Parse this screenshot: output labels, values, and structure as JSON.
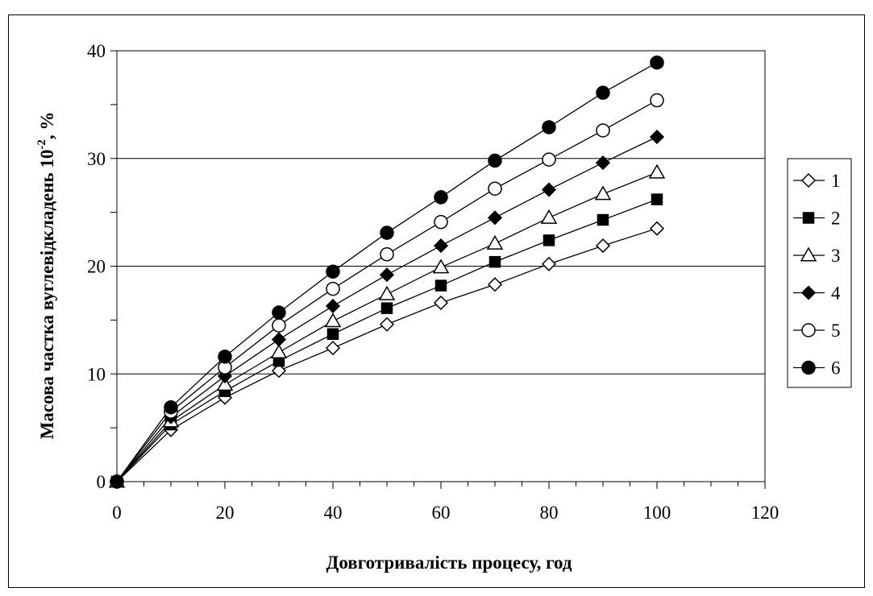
{
  "chart_data": {
    "type": "line",
    "title": "",
    "xlabel": "Довготривалість процесу, год",
    "ylabel_main": "Масова частка вуглевідкладень 10",
    "ylabel_exponent": "-2",
    "ylabel_unit": ", %",
    "xlim": [
      0,
      120
    ],
    "ylim": [
      0,
      40
    ],
    "xticks": [
      0,
      20,
      40,
      60,
      80,
      100,
      120
    ],
    "yticks": [
      0,
      10,
      20,
      30,
      40
    ],
    "grid": "horizontal major lines",
    "legend_position": "right",
    "x": [
      0,
      10,
      20,
      30,
      40,
      50,
      60,
      70,
      80,
      90,
      100
    ],
    "series": [
      {
        "name": "1",
        "marker": "diamond-open",
        "values": [
          0,
          4.8,
          7.8,
          10.3,
          12.4,
          14.6,
          16.6,
          18.3,
          20.2,
          21.9,
          23.5
        ]
      },
      {
        "name": "2",
        "marker": "square-filled",
        "values": [
          0,
          5.3,
          8.4,
          11.2,
          13.7,
          16.1,
          18.2,
          20.4,
          22.4,
          24.3,
          26.2
        ]
      },
      {
        "name": "3",
        "marker": "triangle-open",
        "values": [
          0,
          5.6,
          9.0,
          12.0,
          14.9,
          17.4,
          19.9,
          22.1,
          24.5,
          26.7,
          28.7
        ]
      },
      {
        "name": "4",
        "marker": "diamond-filled",
        "values": [
          0,
          6.0,
          9.8,
          13.2,
          16.3,
          19.2,
          21.9,
          24.5,
          27.1,
          29.6,
          32.0
        ]
      },
      {
        "name": "5",
        "marker": "circle-open",
        "values": [
          0,
          6.5,
          10.6,
          14.5,
          17.9,
          21.1,
          24.1,
          27.2,
          29.9,
          32.6,
          35.4
        ]
      },
      {
        "name": "6",
        "marker": "circle-filled",
        "values": [
          0,
          6.9,
          11.6,
          15.7,
          19.5,
          23.1,
          26.4,
          29.8,
          32.9,
          36.1,
          38.9
        ]
      }
    ]
  }
}
